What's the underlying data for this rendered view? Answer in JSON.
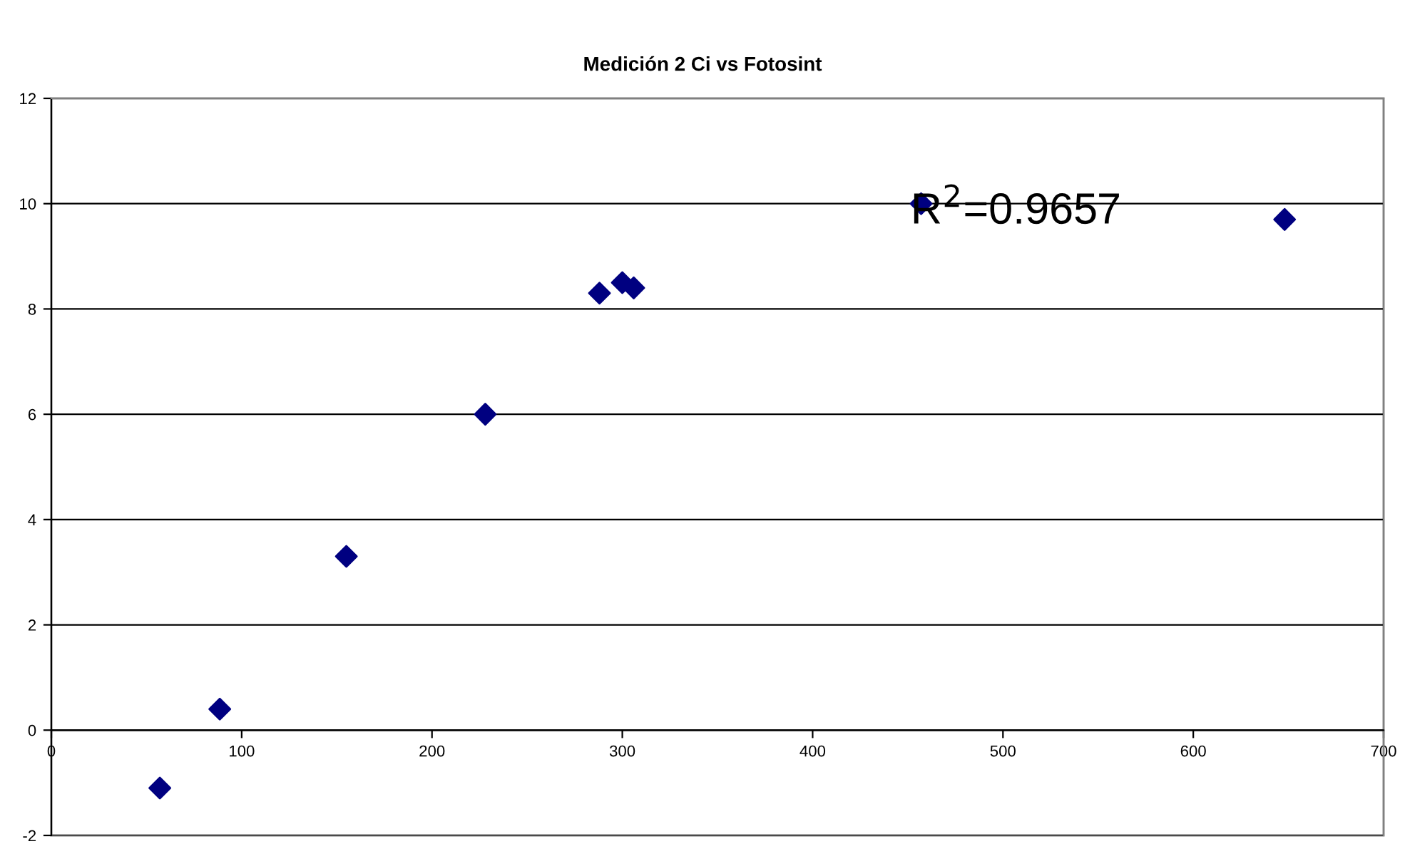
{
  "chart_data": {
    "type": "scatter",
    "title": "Medición 2 Ci vs Fotosint",
    "x": [
      57,
      88.5,
      155,
      228,
      288,
      300,
      306,
      457,
      648
    ],
    "series": [
      {
        "color": "#000080",
        "values": [
          -1.1,
          0.4,
          3.3,
          6.0,
          8.3,
          8.5,
          8.4,
          10.0,
          9.7
        ]
      }
    ],
    "xlim": [
      0,
      700
    ],
    "xticks": [
      0,
      100,
      200,
      300,
      400,
      500,
      600,
      700
    ],
    "ylim": [
      -2,
      12
    ],
    "yticks": [
      -2,
      0,
      2,
      4,
      6,
      8,
      10,
      12
    ],
    "grid": "y",
    "marker": "diamond",
    "legend": false,
    "annotations": [
      "R$^{2}$=0.9657"
    ]
  }
}
